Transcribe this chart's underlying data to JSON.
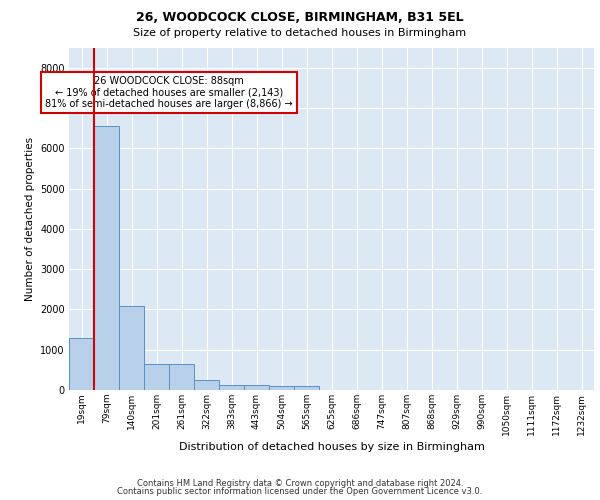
{
  "title_line1": "26, WOODCOCK CLOSE, BIRMINGHAM, B31 5EL",
  "title_line2": "Size of property relative to detached houses in Birmingham",
  "xlabel": "Distribution of detached houses by size in Birmingham",
  "ylabel": "Number of detached properties",
  "footer_line1": "Contains HM Land Registry data © Crown copyright and database right 2024.",
  "footer_line2": "Contains public sector information licensed under the Open Government Licence v3.0.",
  "annotation_line1": "26 WOODCOCK CLOSE: 88sqm",
  "annotation_line2": "← 19% of detached houses are smaller (2,143)",
  "annotation_line3": "81% of semi-detached houses are larger (8,866) →",
  "categories": [
    "19sqm",
    "79sqm",
    "140sqm",
    "201sqm",
    "261sqm",
    "322sqm",
    "383sqm",
    "443sqm",
    "504sqm",
    "565sqm",
    "625sqm",
    "686sqm",
    "747sqm",
    "807sqm",
    "868sqm",
    "929sqm",
    "990sqm",
    "1050sqm",
    "1111sqm",
    "1172sqm",
    "1232sqm"
  ],
  "values": [
    1300,
    6560,
    2080,
    650,
    650,
    260,
    130,
    130,
    100,
    100,
    0,
    0,
    0,
    0,
    0,
    0,
    0,
    0,
    0,
    0,
    0
  ],
  "bar_color": "#b8d0ea",
  "bar_edge_color": "#5a8fc0",
  "vline_x": 0.5,
  "vline_color": "#cc0000",
  "ylim": [
    0,
    8500
  ],
  "yticks": [
    0,
    1000,
    2000,
    3000,
    4000,
    5000,
    6000,
    7000,
    8000
  ],
  "plot_bg_color": "#dde8f5",
  "grid_color": "#ffffff",
  "annot_edge_color": "#cc0000",
  "annot_bg": "#ffffff",
  "title1_fontsize": 9,
  "title2_fontsize": 8,
  "ylabel_fontsize": 7.5,
  "xlabel_fontsize": 8,
  "tick_fontsize": 6.5,
  "annot_fontsize": 7,
  "footer_fontsize": 6
}
